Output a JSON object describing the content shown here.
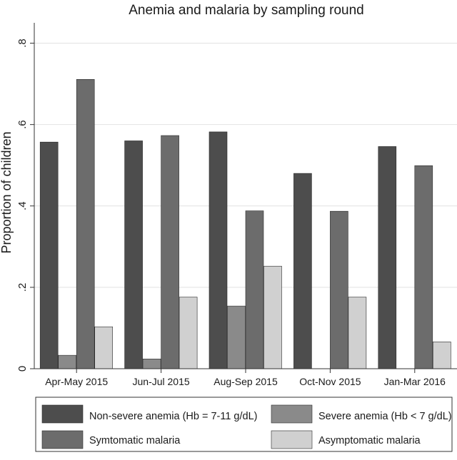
{
  "chart_data": {
    "type": "bar",
    "title": "Anemia and malaria by sampling round",
    "ylabel": "Proportion of children",
    "xlabel": "",
    "ylim": [
      0,
      0.85
    ],
    "yticks": [
      0,
      0.2,
      0.4,
      0.6,
      0.8
    ],
    "ytick_labels": [
      "0",
      ".2",
      ".4",
      ".6",
      ".8"
    ],
    "grid": true,
    "legend_position": "bottom",
    "categories": [
      "Apr-May 2015",
      "Jun-Jul 2015",
      "Aug-Sep 2015",
      "Oct-Nov 2015",
      "Jan-Mar 2016"
    ],
    "series": [
      {
        "name": "Non-severe anemia (Hb = 7-11 g/dL)",
        "color": "#4d4d4d",
        "values": [
          0.557,
          0.56,
          0.582,
          0.48,
          0.546
        ]
      },
      {
        "name": "Severe anemia (Hb < 7 g/dL)",
        "color": "#8a8a8a",
        "values": [
          0.033,
          0.024,
          0.154,
          0,
          0
        ]
      },
      {
        "name": "Symtomatic malaria",
        "color": "#6c6c6c",
        "values": [
          0.711,
          0.573,
          0.388,
          0.387,
          0.499
        ]
      },
      {
        "name": "Asymptomatic malaria",
        "color": "#d0d0d0",
        "values": [
          0.103,
          0.176,
          0.252,
          0.176,
          0.066
        ]
      }
    ]
  }
}
